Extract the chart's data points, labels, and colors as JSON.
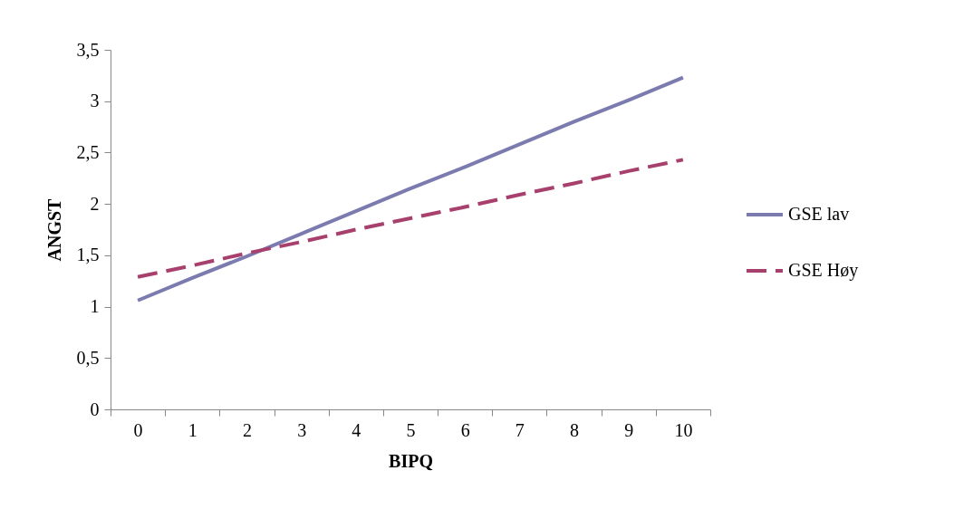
{
  "chart_data": {
    "type": "line",
    "xlabel": "BIPQ",
    "ylabel": "ANGST",
    "categories": [
      "0",
      "1",
      "2",
      "3",
      "4",
      "5",
      "6",
      "7",
      "8",
      "9",
      "10"
    ],
    "series": [
      {
        "name": "GSE lav",
        "color": "#7b7bb0",
        "line_style": "solid",
        "values": [
          1.06,
          1.28,
          1.49,
          1.71,
          1.93,
          2.15,
          2.36,
          2.58,
          2.8,
          3.01,
          3.23
        ]
      },
      {
        "name": "GSE Høy",
        "color": "#a8406e",
        "line_style": "dashed",
        "values": [
          1.29,
          1.4,
          1.52,
          1.63,
          1.75,
          1.86,
          1.97,
          2.09,
          2.2,
          2.32,
          2.43
        ]
      }
    ],
    "ylim": [
      0,
      3.5
    ],
    "yticks": [
      0,
      {
        "value": 0.5,
        "label": "0,5"
      },
      1,
      {
        "value": 1.5,
        "label": "1,5"
      },
      2,
      {
        "value": 2.5,
        "label": "2,5"
      },
      3,
      {
        "value": 3.5,
        "label": "3,5"
      }
    ],
    "grid": false,
    "legend": "right",
    "marker": "none"
  }
}
